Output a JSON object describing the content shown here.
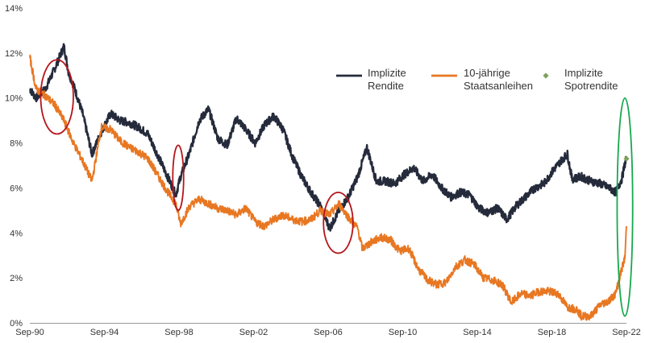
{
  "chart_data": {
    "type": "line",
    "title": "",
    "xlabel": "",
    "ylabel": "",
    "ylim": [
      0,
      14
    ],
    "grid": false,
    "legend_position": "top-right",
    "x_ticks": [
      "Sep-90",
      "Sep-94",
      "Sep-98",
      "Sep-02",
      "Sep-06",
      "Sep-10",
      "Sep-14",
      "Sep-18",
      "Sep-22"
    ],
    "y_ticks": [
      "0%",
      "2%",
      "4%",
      "6%",
      "8%",
      "10%",
      "12%",
      "14%"
    ],
    "series": [
      {
        "name": "Implizite Rendite",
        "legend_lines": [
          "Implizite",
          "Rendite"
        ],
        "color": "#252b3b",
        "points": [
          [
            "Sep-90",
            10.4
          ],
          [
            "Jan-91",
            10.0
          ],
          [
            "Jul-91",
            10.4
          ],
          [
            "Jan-92",
            11.3
          ],
          [
            "Apr-92",
            11.8
          ],
          [
            "Jul-92",
            12.3
          ],
          [
            "Oct-92",
            11.1
          ],
          [
            "Jan-93",
            10.6
          ],
          [
            "Jul-93",
            9.3
          ],
          [
            "Jan-94",
            7.5
          ],
          [
            "Jul-94",
            8.5
          ],
          [
            "Jan-95",
            9.3
          ],
          [
            "Jul-95",
            9.0
          ],
          [
            "Jan-96",
            8.9
          ],
          [
            "Jul-96",
            8.7
          ],
          [
            "Jan-97",
            8.4
          ],
          [
            "Jul-97",
            7.5
          ],
          [
            "Jan-98",
            6.6
          ],
          [
            "Jul-98",
            5.7
          ],
          [
            "Oct-98",
            6.5
          ],
          [
            "Apr-99",
            7.6
          ],
          [
            "Oct-99",
            9.0
          ],
          [
            "Apr-00",
            9.5
          ],
          [
            "Oct-00",
            8.2
          ],
          [
            "Apr-01",
            7.9
          ],
          [
            "Oct-01",
            9.1
          ],
          [
            "Apr-02",
            8.6
          ],
          [
            "Oct-02",
            8.0
          ],
          [
            "Apr-03",
            8.8
          ],
          [
            "Oct-03",
            9.2
          ],
          [
            "Apr-04",
            8.6
          ],
          [
            "Oct-04",
            7.4
          ],
          [
            "Apr-05",
            6.5
          ],
          [
            "Oct-05",
            5.8
          ],
          [
            "Apr-06",
            5.2
          ],
          [
            "Oct-06",
            4.2
          ],
          [
            "Apr-07",
            5.0
          ],
          [
            "Oct-07",
            5.6
          ],
          [
            "Apr-08",
            6.5
          ],
          [
            "Oct-08",
            7.8
          ],
          [
            "Apr-09",
            6.3
          ],
          [
            "Oct-09",
            6.3
          ],
          [
            "Apr-10",
            6.2
          ],
          [
            "Oct-10",
            6.6
          ],
          [
            "Apr-11",
            6.9
          ],
          [
            "Oct-11",
            6.3
          ],
          [
            "Apr-12",
            6.6
          ],
          [
            "Oct-12",
            6.0
          ],
          [
            "Apr-13",
            5.6
          ],
          [
            "Oct-13",
            5.8
          ],
          [
            "Apr-14",
            5.7
          ],
          [
            "Oct-14",
            5.1
          ],
          [
            "Apr-15",
            4.9
          ],
          [
            "Oct-15",
            5.1
          ],
          [
            "Apr-16",
            4.6
          ],
          [
            "Oct-16",
            5.2
          ],
          [
            "Apr-17",
            5.6
          ],
          [
            "Oct-17",
            6.0
          ],
          [
            "Apr-18",
            6.2
          ],
          [
            "Oct-18",
            6.8
          ],
          [
            "Apr-19",
            7.3
          ],
          [
            "Jul-19",
            7.5
          ],
          [
            "Oct-19",
            6.4
          ],
          [
            "Apr-20",
            6.5
          ],
          [
            "Oct-20",
            6.3
          ],
          [
            "Apr-21",
            6.2
          ],
          [
            "Oct-21",
            6.0
          ],
          [
            "Feb-22",
            5.8
          ],
          [
            "Jun-22",
            6.4
          ],
          [
            "Sep-22",
            7.4
          ]
        ]
      },
      {
        "name": "10-jährige Staatsanleihen",
        "legend_lines": [
          "10-jährige",
          "Staatsanleihen"
        ],
        "color": "#e87722",
        "points": [
          [
            "Sep-90",
            11.8
          ],
          [
            "Jan-91",
            10.4
          ],
          [
            "Jul-91",
            10.1
          ],
          [
            "Jan-92",
            9.7
          ],
          [
            "Jul-92",
            9.0
          ],
          [
            "Jan-93",
            8.0
          ],
          [
            "Jul-93",
            7.2
          ],
          [
            "Jan-94",
            6.3
          ],
          [
            "Jul-94",
            8.7
          ],
          [
            "Jan-95",
            8.6
          ],
          [
            "Jul-95",
            8.1
          ],
          [
            "Jan-96",
            7.8
          ],
          [
            "Jul-96",
            7.6
          ],
          [
            "Jan-97",
            7.3
          ],
          [
            "Jul-97",
            6.6
          ],
          [
            "Jan-98",
            5.9
          ],
          [
            "Jul-98",
            5.3
          ],
          [
            "Oct-98",
            4.4
          ],
          [
            "Apr-99",
            5.2
          ],
          [
            "Oct-99",
            5.5
          ],
          [
            "Apr-00",
            5.3
          ],
          [
            "Oct-00",
            5.1
          ],
          [
            "Apr-01",
            5.0
          ],
          [
            "Oct-01",
            4.8
          ],
          [
            "Apr-02",
            5.1
          ],
          [
            "Oct-02",
            4.5
          ],
          [
            "Apr-03",
            4.3
          ],
          [
            "Oct-03",
            4.6
          ],
          [
            "Apr-04",
            4.8
          ],
          [
            "Oct-04",
            4.6
          ],
          [
            "Apr-05",
            4.5
          ],
          [
            "Oct-05",
            4.6
          ],
          [
            "Apr-06",
            5.0
          ],
          [
            "Oct-06",
            4.8
          ],
          [
            "Apr-07",
            5.3
          ],
          [
            "Oct-07",
            4.7
          ],
          [
            "Apr-08",
            4.2
          ],
          [
            "Jul-08",
            3.3
          ],
          [
            "Jan-09",
            3.6
          ],
          [
            "Jul-09",
            3.8
          ],
          [
            "Jan-10",
            3.7
          ],
          [
            "Jul-10",
            3.2
          ],
          [
            "Jan-11",
            3.3
          ],
          [
            "Jul-11",
            2.4
          ],
          [
            "Jan-12",
            1.9
          ],
          [
            "Jul-12",
            1.7
          ],
          [
            "Jan-13",
            1.8
          ],
          [
            "Jul-13",
            2.5
          ],
          [
            "Jan-14",
            2.8
          ],
          [
            "Jul-14",
            2.6
          ],
          [
            "Jan-15",
            2.0
          ],
          [
            "Jul-15",
            1.9
          ],
          [
            "Jan-16",
            1.7
          ],
          [
            "Jul-16",
            0.9
          ],
          [
            "Jan-17",
            1.3
          ],
          [
            "Jul-17",
            1.2
          ],
          [
            "Jan-18",
            1.4
          ],
          [
            "Jul-18",
            1.4
          ],
          [
            "Jan-19",
            1.3
          ],
          [
            "Jul-19",
            0.7
          ],
          [
            "Jan-20",
            0.6
          ],
          [
            "Apr-20",
            0.3
          ],
          [
            "Oct-20",
            0.3
          ],
          [
            "Apr-21",
            0.8
          ],
          [
            "Oct-21",
            1.0
          ],
          [
            "Feb-22",
            1.3
          ],
          [
            "Jun-22",
            2.4
          ],
          [
            "Aug-22",
            2.9
          ],
          [
            "Sep-22",
            4.3
          ]
        ]
      }
    ],
    "markers": [
      {
        "name": "Implizite Spotrendite",
        "legend_lines": [
          "Implizite",
          "Spotrendite"
        ],
        "color": "#7da25a",
        "shape": "diamond",
        "x": "Sep-22",
        "y": 7.3
      }
    ],
    "annotations": [
      {
        "shape": "ellipse",
        "color": "#b5151b",
        "x_range": [
          "Apr-91",
          "Jan-93"
        ],
        "y_range": [
          8.4,
          11.7
        ]
      },
      {
        "shape": "ellipse",
        "color": "#b5151b",
        "x_range": [
          "May-98",
          "Dec-98"
        ],
        "y_range": [
          5.0,
          7.9
        ]
      },
      {
        "shape": "ellipse",
        "color": "#b5151b",
        "x_range": [
          "Jun-06",
          "Jan-08"
        ],
        "y_range": [
          3.1,
          5.8
        ]
      },
      {
        "shape": "ellipse",
        "color": "#18a84f",
        "x_range": [
          "Mar-22",
          "Jan-23"
        ],
        "y_range": [
          0.3,
          10.0
        ]
      }
    ]
  }
}
